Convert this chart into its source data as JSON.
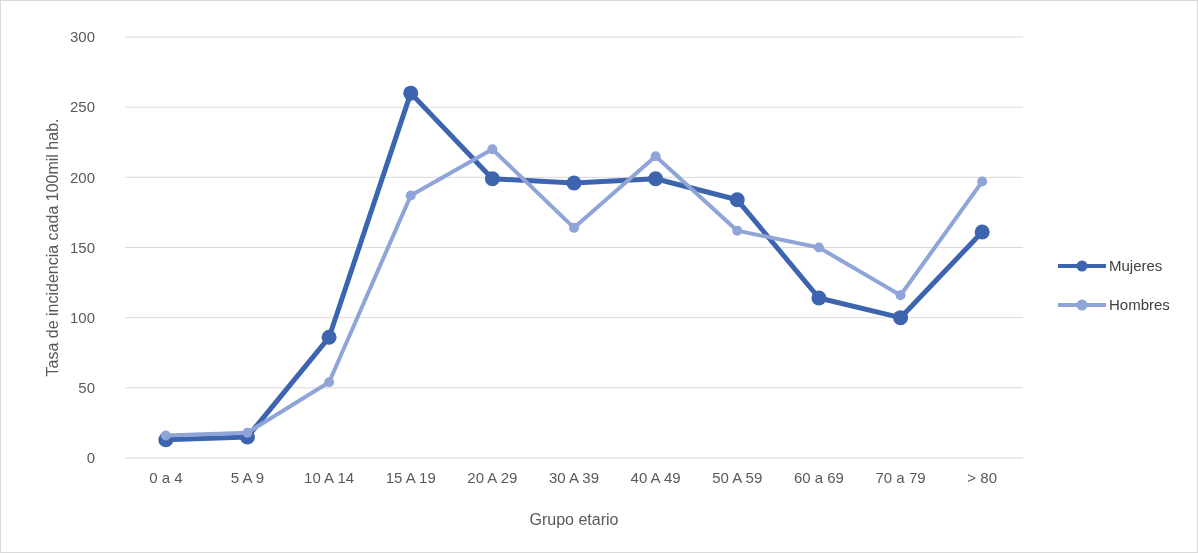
{
  "chart_data": {
    "type": "line",
    "xlabel": "Grupo etario",
    "ylabel": "Tasa de incidencia cada 100mil hab.",
    "categories": [
      "0 a 4",
      "5 A 9",
      "10 A 14",
      "15 A 19",
      "20 A 29",
      "30 A 39",
      "40 A 49",
      "50 A 59",
      "60 a 69",
      "70 a 79",
      "> 80"
    ],
    "series": [
      {
        "name": "Mujeres",
        "color": "#3d64ae",
        "values": [
          13,
          15,
          86,
          260,
          199,
          196,
          199,
          184,
          114,
          100,
          161
        ]
      },
      {
        "name": "Hombres",
        "color": "#8fa5d8",
        "values": [
          16,
          18,
          54,
          187,
          220,
          164,
          215,
          162,
          150,
          116,
          197
        ]
      }
    ],
    "ylim": [
      0,
      300
    ],
    "yticks": [
      0,
      50,
      100,
      150,
      200,
      250,
      300
    ],
    "grid": "y",
    "legend": "right",
    "marker": "circle"
  }
}
